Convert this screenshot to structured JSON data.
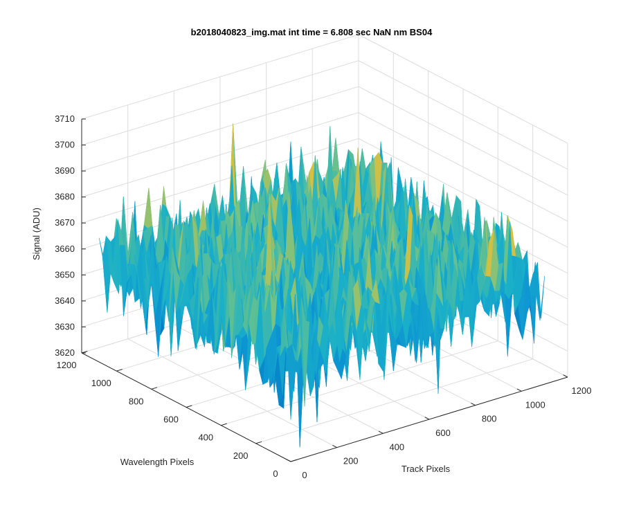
{
  "chart_data": {
    "type": "surface",
    "title": "b2018040823_img.mat int time = 6.808 sec  NaN nm BS04",
    "xlabel": "Track Pixels",
    "ylabel": "Wavelength Pixels",
    "zlabel": "Signal (ADU)",
    "xlim": [
      0,
      1200
    ],
    "ylim": [
      0,
      1200
    ],
    "zlim": [
      3620,
      3710
    ],
    "x_ticks": [
      "0",
      "200",
      "400",
      "600",
      "800",
      "1000",
      "1200"
    ],
    "y_ticks": [
      "0",
      "200",
      "400",
      "600",
      "800",
      "1000",
      "1200"
    ],
    "z_ticks": [
      "3620",
      "3630",
      "3640",
      "3650",
      "3660",
      "3670",
      "3680",
      "3690",
      "3700",
      "3710"
    ],
    "grid": true,
    "colormap": "parula",
    "colors": {
      "low": "#0072BD",
      "mid": "#1AB0C8",
      "mid2": "#6CC28A",
      "high": "#EDBF32",
      "grid": "#DCDCDC",
      "axis": "#262626"
    },
    "signal_summary": {
      "mean_adu": 3660,
      "typical_range_adu": [
        3640,
        3680
      ],
      "extreme_range_adu": [
        3620,
        3710
      ],
      "data_extent_pixels": [
        0,
        1100
      ]
    }
  }
}
